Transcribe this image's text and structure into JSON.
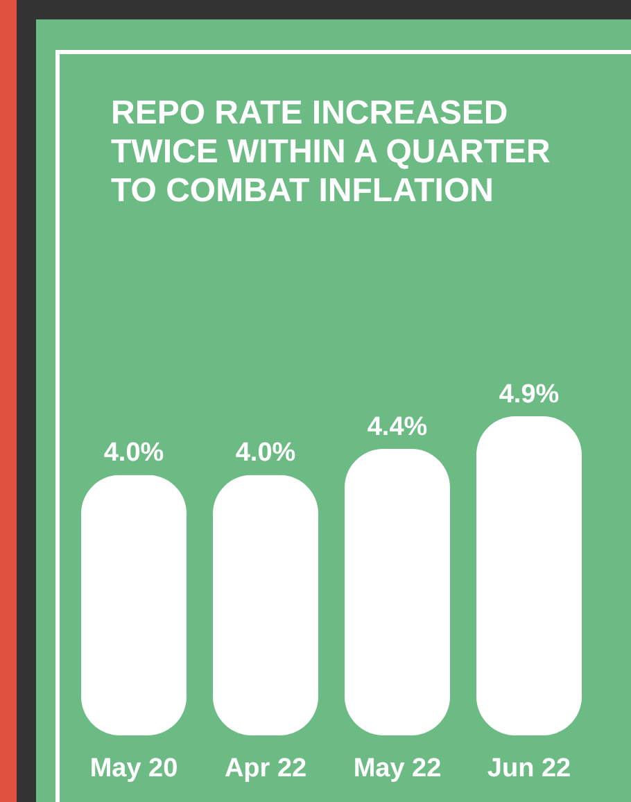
{
  "chart_data": {
    "type": "bar",
    "title": "REPO RATE INCREASED TWICE WITHIN A QUARTER TO COMBAT INFLATION",
    "categories": [
      "May 20",
      "Apr 22",
      "May 22",
      "Jun 22"
    ],
    "values": [
      4.0,
      4.0,
      4.4,
      4.9
    ],
    "value_labels": [
      "4.0%",
      "4.0%",
      "4.4%",
      "4.9%"
    ],
    "color": "#ffffff"
  }
}
